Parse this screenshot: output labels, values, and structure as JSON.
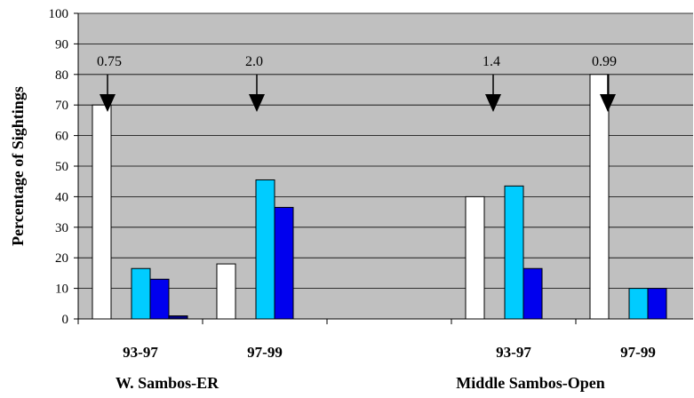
{
  "chart_data": {
    "type": "bar",
    "title": "",
    "ylabel": "Percentage of Sightings",
    "ylim": [
      0,
      100
    ],
    "yticks": [
      0,
      10,
      20,
      30,
      40,
      50,
      60,
      70,
      80,
      90,
      100
    ],
    "grid": true,
    "background": "#c0c0c0",
    "categories": [
      "93-97",
      "97-99",
      "93-97",
      "97-99"
    ],
    "groups": [
      {
        "label": "W. Sambos-ER"
      },
      {
        "label": "Middle Sambos-Open"
      }
    ],
    "series": [
      {
        "color": "#ffffff",
        "values": [
          70,
          18,
          40,
          80
        ]
      },
      {
        "color": "#00ccff",
        "values": [
          16.5,
          45.5,
          43.5,
          10
        ]
      },
      {
        "color": "#0000ee",
        "values": [
          13,
          36.5,
          16.5,
          10
        ]
      },
      {
        "color": "#000080",
        "values": [
          1,
          null,
          null,
          null
        ]
      }
    ],
    "annotations": [
      {
        "text": "0.75",
        "category_index": 0
      },
      {
        "text": "2.0",
        "category_index": 1
      },
      {
        "text": "1.4",
        "category_index": 2
      },
      {
        "text": "0.99",
        "category_index": 3
      }
    ]
  }
}
